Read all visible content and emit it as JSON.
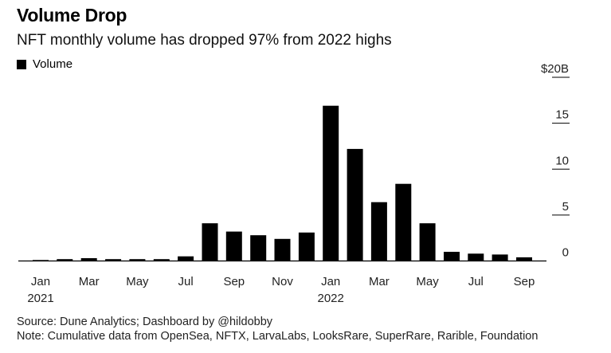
{
  "title": "Volume Drop",
  "subtitle": "NFT monthly volume has dropped 97% from 2022 highs",
  "legend": {
    "label": "Volume",
    "color": "#000000"
  },
  "source": "Source: Dune Analytics; Dashboard by @hildobby",
  "note": "Note: Cumulative data from OpenSea, NFTX, LarvaLabs, LooksRare, SuperRare, Rarible, Foundation",
  "chart_data": {
    "type": "bar",
    "categories": [
      "Jan 2021",
      "Feb 2021",
      "Mar 2021",
      "Apr 2021",
      "May 2021",
      "Jun 2021",
      "Jul 2021",
      "Aug 2021",
      "Sep 2021",
      "Oct 2021",
      "Nov 2021",
      "Dec 2021",
      "Jan 2022",
      "Feb 2022",
      "Mar 2022",
      "Apr 2022",
      "May 2022",
      "Jun 2022",
      "Jul 2022",
      "Aug 2022",
      "Sep 2022"
    ],
    "values": [
      0.1,
      0.2,
      0.3,
      0.2,
      0.2,
      0.2,
      0.5,
      4.1,
      3.2,
      2.8,
      2.4,
      3.1,
      16.9,
      12.2,
      6.4,
      8.4,
      4.1,
      1.0,
      0.8,
      0.7,
      0.4
    ],
    "ylim": [
      0,
      20
    ],
    "yticks": [
      0,
      5,
      10,
      15,
      20
    ],
    "ytick_labels": [
      "0",
      "5",
      "10",
      "15",
      "$20B"
    ],
    "x_tick_labels": [
      {
        "index": 0,
        "month": "Jan",
        "year": "2021"
      },
      {
        "index": 2,
        "month": "Mar",
        "year": ""
      },
      {
        "index": 4,
        "month": "May",
        "year": ""
      },
      {
        "index": 6,
        "month": "Jul",
        "year": ""
      },
      {
        "index": 8,
        "month": "Sep",
        "year": ""
      },
      {
        "index": 10,
        "month": "Nov",
        "year": ""
      },
      {
        "index": 12,
        "month": "Jan",
        "year": "2022"
      },
      {
        "index": 14,
        "month": "Mar",
        "year": ""
      },
      {
        "index": 16,
        "month": "May",
        "year": ""
      },
      {
        "index": 18,
        "month": "Jul",
        "year": ""
      },
      {
        "index": 20,
        "month": "Sep",
        "year": ""
      }
    ],
    "y_axis_side": "right",
    "grid": false,
    "bar_color": "#000000",
    "legend_position": "top-left"
  }
}
